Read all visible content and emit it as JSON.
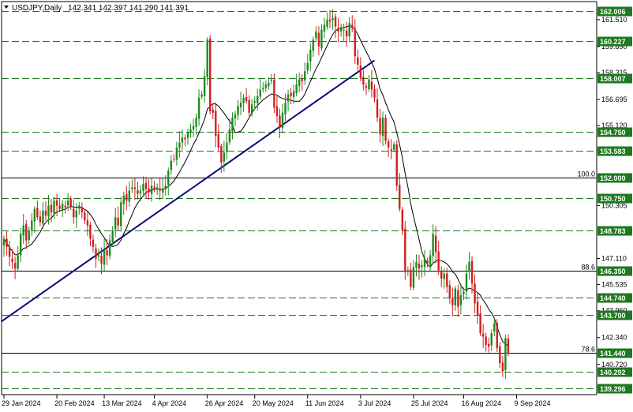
{
  "header": {
    "symbol": "USDJPY,Daily",
    "ohlc": "142.341 142.397 141.290 141.391"
  },
  "colors": {
    "bull": "#1e8a1e",
    "bear": "#d21e1e",
    "level_dash": "#1e7a1e",
    "level_solid": "#000000",
    "level_label_bg": "#1e7a1e",
    "trendline": "#0a0a78",
    "ma": "#000000"
  },
  "chart_data": {
    "type": "candlestick",
    "title": "",
    "ylim": [
      138.9,
      162.6
    ],
    "x_tick_labels": [
      "29 Jan 2024",
      "20 Feb 2024",
      "13 Mar 2024",
      "4 Apr 2024",
      "26 Apr 2024",
      "20 May 2024",
      "11 Jun 2024",
      "3 Jul 2024",
      "25 Jul 2024",
      "16 Aug 2024",
      "9 Sep 2024"
    ],
    "y_tick_labels": [
      "161.510",
      "159.890",
      "158.315",
      "156.695",
      "155.120",
      "150.305",
      "147.110",
      "145.535",
      "143.960",
      "142.340",
      "140.720"
    ],
    "levels": [
      {
        "value": 162.006,
        "label": "162.006",
        "style": "dashed"
      },
      {
        "value": 160.227,
        "label": "160.227",
        "style": "dashed"
      },
      {
        "value": 158.007,
        "label": "158.007",
        "style": "dashed"
      },
      {
        "value": 154.75,
        "label": "154.750",
        "style": "dashed"
      },
      {
        "value": 153.583,
        "label": "153.583",
        "style": "dashed"
      },
      {
        "value": 152.0,
        "label": "152.000",
        "style": "solid",
        "fib": "100.0"
      },
      {
        "value": 150.75,
        "label": "150.750",
        "style": "dashed"
      },
      {
        "value": 148.783,
        "label": "148.783",
        "style": "dashed"
      },
      {
        "value": 146.35,
        "label": "146.350",
        "style": "solid",
        "fib": "88.6"
      },
      {
        "value": 144.74,
        "label": "144.740",
        "style": "dashed"
      },
      {
        "value": 143.7,
        "label": "143.700",
        "style": "dashed"
      },
      {
        "value": 141.44,
        "label": "141.440",
        "style": "solid",
        "fib": "78.6"
      },
      {
        "value": 140.292,
        "label": "140.292",
        "style": "dashed"
      },
      {
        "value": 139.296,
        "label": "139.296",
        "style": "dashed"
      }
    ],
    "trendline": {
      "from": {
        "index": -1,
        "value": 143.3
      },
      "to": {
        "index": 133,
        "value": 159.05
      }
    },
    "closes": [
      148.3,
      147.8,
      147.2,
      146.9,
      146.5,
      147.3,
      148.6,
      149.1,
      148.2,
      148.8,
      149.4,
      150.1,
      149.6,
      149.3,
      150.0,
      149.7,
      150.3,
      149.9,
      150.6,
      150.3,
      150.1,
      150.4,
      150.2,
      150.6,
      150.2,
      149.6,
      150.0,
      150.3,
      149.9,
      149.4,
      149.1,
      148.3,
      147.8,
      147.1,
      147.3,
      146.8,
      147.6,
      147.3,
      148.2,
      148.8,
      149.6,
      149.1,
      150.5,
      150.9,
      150.6,
      151.2,
      151.4,
      151.3,
      151.0,
      151.2,
      151.6,
      151.3,
      151.1,
      151.5,
      151.3,
      151.4,
      151.2,
      151.3,
      151.5,
      152.4,
      153.0,
      153.1,
      153.8,
      154.1,
      154.4,
      154.3,
      154.7,
      154.9,
      155.1,
      155.6,
      156.8,
      157.0,
      158.1,
      160.3,
      156.0,
      155.9,
      154.5,
      153.8,
      152.9,
      153.5,
      154.1,
      154.9,
      155.6,
      155.8,
      156.3,
      156.5,
      156.8,
      156.6,
      155.9,
      156.4,
      156.6,
      156.9,
      157.3,
      157.4,
      157.6,
      157.7,
      157.9,
      156.2,
      155.7,
      155.0,
      155.9,
      156.5,
      157.0,
      156.9,
      157.2,
      157.6,
      157.9,
      157.8,
      158.4,
      158.9,
      159.7,
      160.3,
      160.8,
      159.9,
      160.9,
      161.2,
      161.5,
      161.4,
      161.6,
      161.1,
      160.8,
      161.0,
      160.9,
      160.5,
      161.3,
      161.0,
      159.3,
      158.8,
      158.0,
      157.6,
      157.4,
      157.9,
      157.3,
      156.8,
      155.6,
      154.6,
      155.6,
      154.2,
      153.8,
      153.6,
      154.0,
      151.5,
      150.1,
      148.8,
      146.3,
      146.4,
      145.4,
      146.6,
      146.9,
      146.5,
      146.7,
      147.1,
      146.8,
      147.3,
      148.6,
      147.5,
      146.4,
      145.9,
      146.2,
      145.4,
      144.7,
      144.3,
      145.3,
      144.2,
      144.9,
      145.1,
      146.2,
      146.9,
      145.6,
      144.4,
      143.7,
      142.6,
      142.4,
      141.9,
      141.8,
      142.6,
      143.2,
      141.7,
      140.8,
      140.3,
      142.3,
      141.4
    ]
  }
}
